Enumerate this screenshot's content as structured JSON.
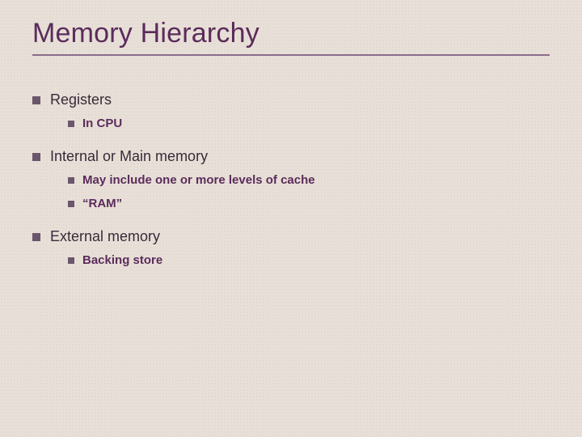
{
  "colors": {
    "background": "#e8e0d8",
    "title": "#5b2b5b",
    "underline": "#8a6d8a",
    "bullet": "#6b566b",
    "lvl1_text": "#3a2a3a",
    "lvl2_text": "#5b2b5b"
  },
  "title": "Memory Hierarchy",
  "items": [
    {
      "label": "Registers",
      "sub": [
        "In CPU"
      ]
    },
    {
      "label": "Internal or Main memory",
      "sub": [
        "May include one or more levels of cache",
        "“RAM”"
      ]
    },
    {
      "label": "External memory",
      "sub": [
        "Backing store"
      ]
    }
  ]
}
